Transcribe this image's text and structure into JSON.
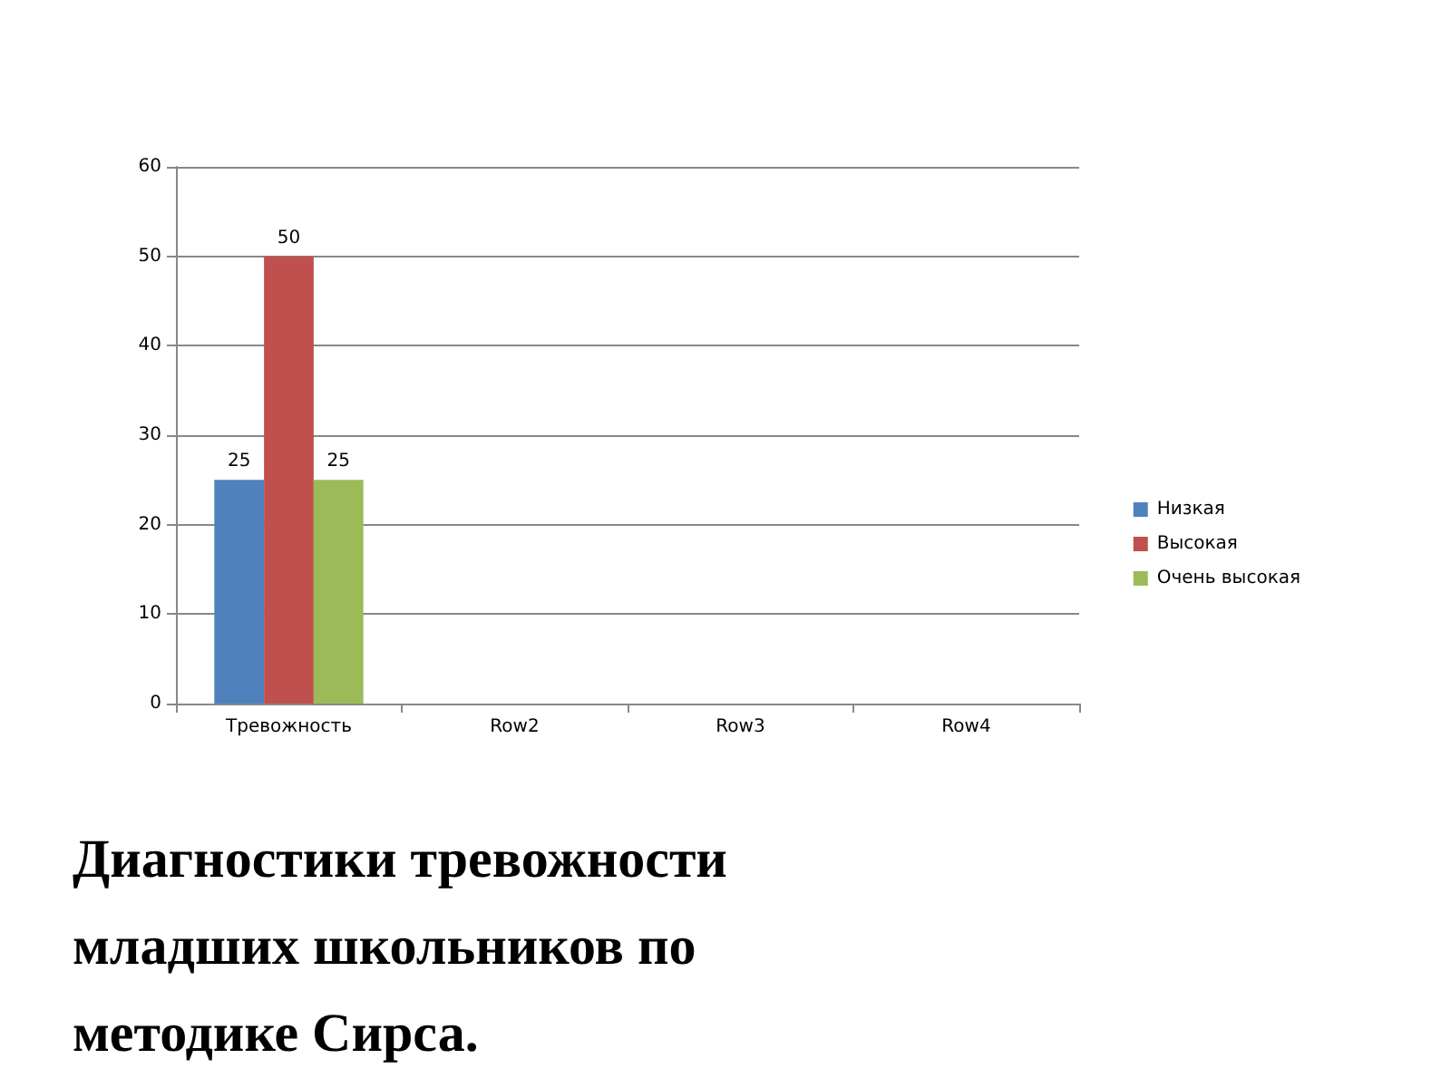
{
  "chart_data": {
    "type": "bar",
    "title": "Диагностики тревожности младших школьников по методике Сирса.",
    "categories": [
      "Тревожность",
      "Row2",
      "Row3",
      "Row4"
    ],
    "series": [
      {
        "name": "Низкая",
        "color": "#4f81bd",
        "values": [
          25,
          null,
          null,
          null
        ]
      },
      {
        "name": "Высокая",
        "color": "#c0504d",
        "values": [
          50,
          null,
          null,
          null
        ]
      },
      {
        "name": "Очень высокая",
        "color": "#9bbb59",
        "values": [
          25,
          null,
          null,
          null
        ]
      }
    ],
    "ylim": [
      0,
      60
    ],
    "yticks": [
      0,
      10,
      20,
      30,
      40,
      50,
      60
    ],
    "grid": "y",
    "legend": "right",
    "data_labels": true
  }
}
